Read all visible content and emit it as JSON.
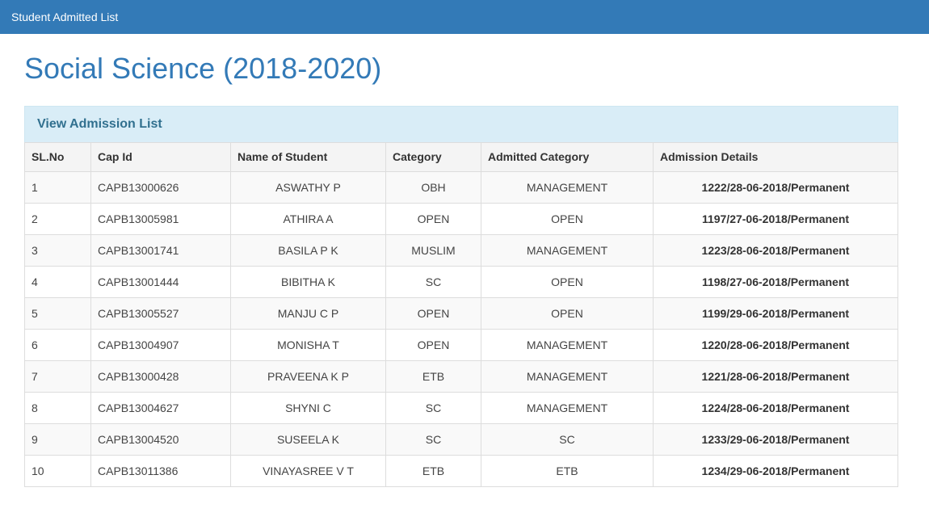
{
  "navbar": {
    "title": "Student Admitted List"
  },
  "page": {
    "title": "Social Science (2018-2020)"
  },
  "colors": {
    "navbar_bg": "#337ab7",
    "page_title": "#337ab7",
    "panel_heading_bg": "#d9edf7",
    "panel_heading_text": "#31708f",
    "table_border": "#dddddd",
    "stripe_row_bg": "#f9f9f9",
    "header_row_bg": "#f4f4f4"
  },
  "panel": {
    "heading": "View Admission List",
    "columns": [
      "SL.No",
      "Cap Id",
      "Name of Student",
      "Category",
      "Admitted Category",
      "Admission Details"
    ],
    "rows": [
      {
        "sl": "1",
        "cap_id": "CAPB13000626",
        "name": "ASWATHY P",
        "category": "OBH",
        "admitted_category": "MANAGEMENT",
        "admission_details": "1222/28-06-2018/Permanent"
      },
      {
        "sl": "2",
        "cap_id": "CAPB13005981",
        "name": "ATHIRA A",
        "category": "OPEN",
        "admitted_category": "OPEN",
        "admission_details": "1197/27-06-2018/Permanent"
      },
      {
        "sl": "3",
        "cap_id": "CAPB13001741",
        "name": "BASILA P K",
        "category": "MUSLIM",
        "admitted_category": "MANAGEMENT",
        "admission_details": "1223/28-06-2018/Permanent"
      },
      {
        "sl": "4",
        "cap_id": "CAPB13001444",
        "name": "BIBITHA K",
        "category": "SC",
        "admitted_category": "OPEN",
        "admission_details": "1198/27-06-2018/Permanent"
      },
      {
        "sl": "5",
        "cap_id": "CAPB13005527",
        "name": "MANJU C P",
        "category": "OPEN",
        "admitted_category": "OPEN",
        "admission_details": "1199/29-06-2018/Permanent"
      },
      {
        "sl": "6",
        "cap_id": "CAPB13004907",
        "name": "MONISHA T",
        "category": "OPEN",
        "admitted_category": "MANAGEMENT",
        "admission_details": "1220/28-06-2018/Permanent"
      },
      {
        "sl": "7",
        "cap_id": "CAPB13000428",
        "name": "PRAVEENA K P",
        "category": "ETB",
        "admitted_category": "MANAGEMENT",
        "admission_details": "1221/28-06-2018/Permanent"
      },
      {
        "sl": "8",
        "cap_id": "CAPB13004627",
        "name": "SHYNI C",
        "category": "SC",
        "admitted_category": "MANAGEMENT",
        "admission_details": "1224/28-06-2018/Permanent"
      },
      {
        "sl": "9",
        "cap_id": "CAPB13004520",
        "name": "SUSEELA K",
        "category": "SC",
        "admitted_category": "SC",
        "admission_details": "1233/29-06-2018/Permanent"
      },
      {
        "sl": "10",
        "cap_id": "CAPB13011386",
        "name": "VINAYASREE V T",
        "category": "ETB",
        "admitted_category": "ETB",
        "admission_details": "1234/29-06-2018/Permanent"
      }
    ]
  }
}
